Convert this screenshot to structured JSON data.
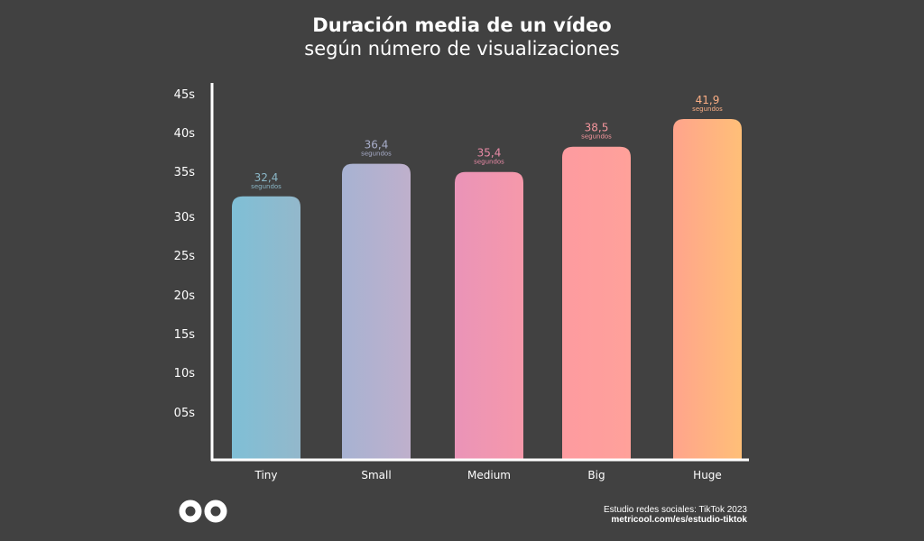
{
  "chart_data": {
    "type": "bar",
    "title": "Duración media de un vídeo",
    "subtitle": "según número de visualizaciones",
    "categories": [
      "Tiny",
      "Small",
      "Medium",
      "Big",
      "Huge"
    ],
    "values": [
      32.4,
      36.4,
      35.4,
      38.5,
      41.9
    ],
    "value_labels": [
      "32,4",
      "36,4",
      "35,4",
      "38,5",
      "41,9"
    ],
    "unit_label": "segundos",
    "yticks": [
      "05s",
      "10s",
      "15s",
      "20s",
      "25s",
      "30s",
      "35s",
      "40s",
      "45s"
    ],
    "ylim": [
      0,
      45
    ],
    "colors": [
      [
        "#7fbfd6",
        "#93b8cb"
      ],
      [
        "#a7b2d2",
        "#bfb0cc"
      ],
      [
        "#ea94b8",
        "#f698aa"
      ],
      [
        "#fd9ba0",
        "#ffa19a"
      ],
      [
        "#ffa48c",
        "#ffbf78"
      ]
    ],
    "label_colors": [
      "#8ab6c6",
      "#a8adc9",
      "#e98aa6",
      "#f3959c",
      "#fbae84"
    ]
  },
  "footer": {
    "source": "Estudio redes sociales: TikTok 2023",
    "url": "metricool.com/es/estudio-tiktok",
    "logo": "metricool"
  }
}
